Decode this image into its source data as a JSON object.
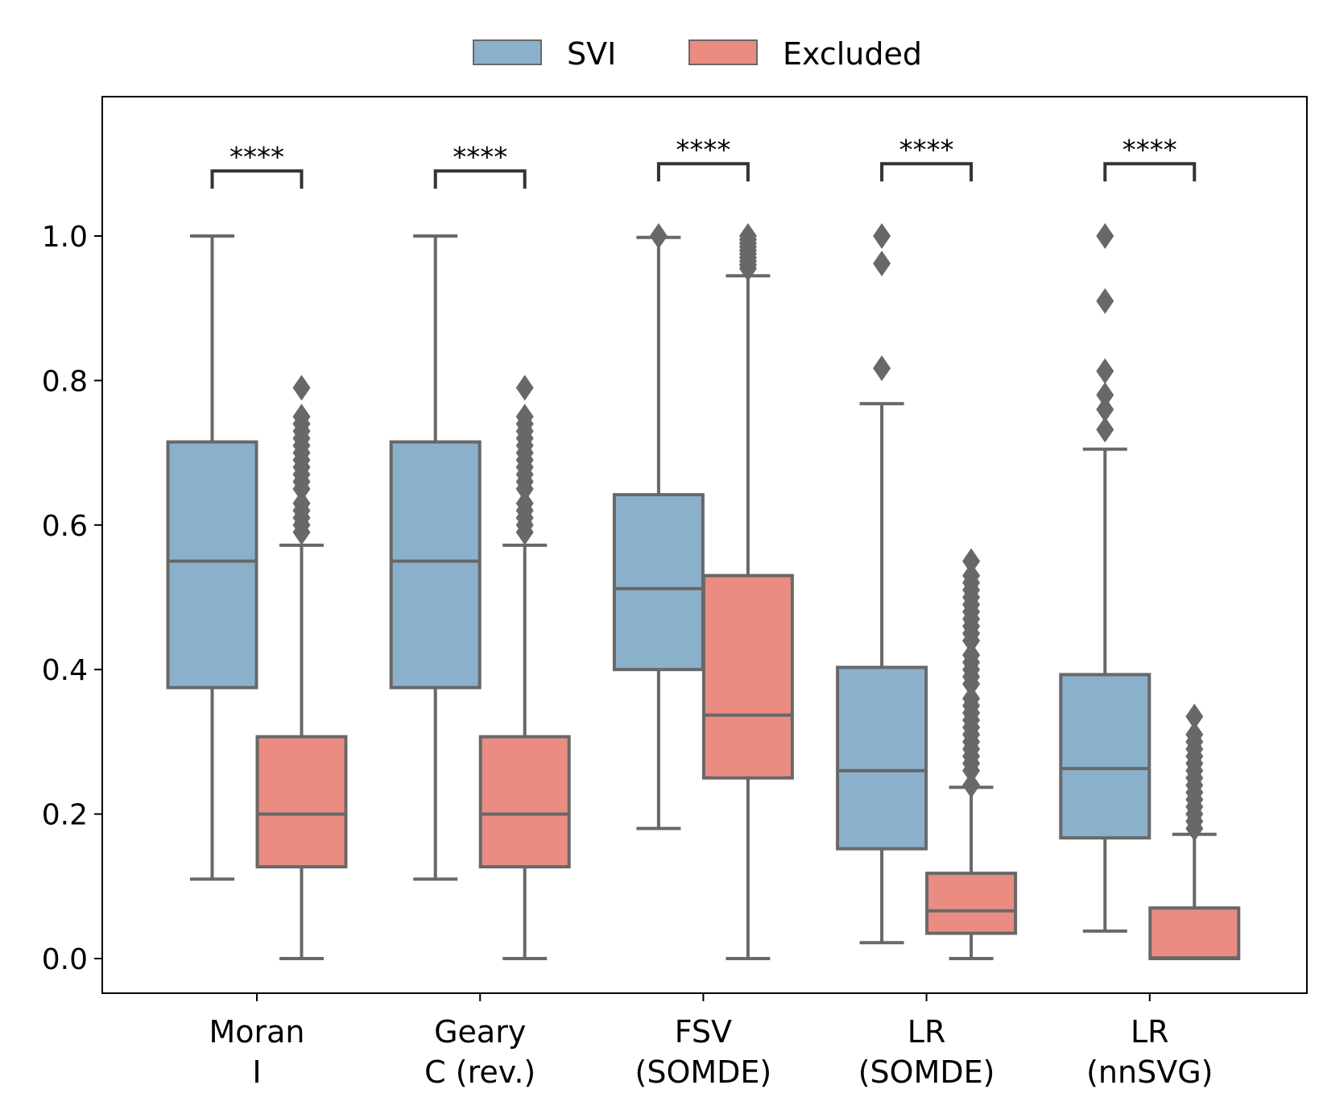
{
  "chart_data": {
    "type": "box",
    "legend": {
      "placement": "top-center",
      "entries": [
        {
          "name": "SVI",
          "color": "#8bb0cc"
        },
        {
          "name": "Excluded",
          "color": "#ea8c82"
        }
      ]
    },
    "box_edge_color": "#686868",
    "ylim": [
      -0.05,
      1.2
    ],
    "yticks": [
      0.0,
      0.2,
      0.4,
      0.6,
      0.8,
      1.0
    ],
    "ytick_labels": [
      "0.0",
      "0.2",
      "0.4",
      "0.6",
      "0.8",
      "1.0"
    ],
    "categories": [
      {
        "label_lines": [
          "Moran",
          "I"
        ],
        "significance": "****",
        "bracket_y": 1.09,
        "boxes": [
          {
            "series": "SVI",
            "whislo": 0.11,
            "q1": 0.375,
            "med": 0.55,
            "q3": 0.715,
            "whishi": 1.0,
            "fliers": []
          },
          {
            "series": "Excluded",
            "whislo": 0.0,
            "q1": 0.127,
            "med": 0.2,
            "q3": 0.307,
            "whishi": 0.572,
            "fliers": [
              0.59,
              0.6,
              0.61,
              0.62,
              0.63,
              0.65,
              0.66,
              0.67,
              0.68,
              0.69,
              0.7,
              0.71,
              0.72,
              0.73,
              0.74,
              0.75,
              0.79
            ]
          }
        ]
      },
      {
        "label_lines": [
          "Geary",
          "C (rev.)"
        ],
        "significance": "****",
        "bracket_y": 1.09,
        "boxes": [
          {
            "series": "SVI",
            "whislo": 0.11,
            "q1": 0.375,
            "med": 0.55,
            "q3": 0.715,
            "whishi": 1.0,
            "fliers": []
          },
          {
            "series": "Excluded",
            "whislo": 0.0,
            "q1": 0.127,
            "med": 0.2,
            "q3": 0.307,
            "whishi": 0.572,
            "fliers": [
              0.59,
              0.6,
              0.61,
              0.62,
              0.63,
              0.65,
              0.66,
              0.67,
              0.68,
              0.69,
              0.7,
              0.71,
              0.72,
              0.73,
              0.74,
              0.75,
              0.79
            ]
          }
        ]
      },
      {
        "label_lines": [
          "FSV",
          "(SOMDE)"
        ],
        "significance": "****",
        "bracket_y": 1.1,
        "boxes": [
          {
            "series": "SVI",
            "whislo": 0.18,
            "q1": 0.4,
            "med": 0.512,
            "q3": 0.642,
            "whishi": 0.998,
            "fliers": [
              1.0
            ]
          },
          {
            "series": "Excluded",
            "whislo": 0.0,
            "q1": 0.25,
            "med": 0.337,
            "q3": 0.53,
            "whishi": 0.945,
            "fliers": [
              0.955,
              0.96,
              0.965,
              0.97,
              0.975,
              0.98,
              0.985,
              0.99,
              0.995,
              1.0
            ]
          }
        ]
      },
      {
        "label_lines": [
          "LR",
          "(SOMDE)"
        ],
        "significance": "****",
        "bracket_y": 1.1,
        "boxes": [
          {
            "series": "SVI",
            "whislo": 0.022,
            "q1": 0.152,
            "med": 0.26,
            "q3": 0.403,
            "whishi": 0.768,
            "fliers": [
              0.817,
              0.962,
              1.0
            ]
          },
          {
            "series": "Excluded",
            "whislo": 0.0,
            "q1": 0.035,
            "med": 0.066,
            "q3": 0.118,
            "whishi": 0.237,
            "fliers": [
              0.24,
              0.26,
              0.27,
              0.28,
              0.29,
              0.3,
              0.31,
              0.32,
              0.33,
              0.34,
              0.35,
              0.36,
              0.38,
              0.39,
              0.4,
              0.41,
              0.42,
              0.44,
              0.45,
              0.46,
              0.47,
              0.48,
              0.49,
              0.5,
              0.51,
              0.52,
              0.53,
              0.55
            ]
          }
        ]
      },
      {
        "label_lines": [
          "LR",
          "(nnSVG)"
        ],
        "significance": "****",
        "bracket_y": 1.1,
        "boxes": [
          {
            "series": "SVI",
            "whislo": 0.038,
            "q1": 0.167,
            "med": 0.263,
            "q3": 0.393,
            "whishi": 0.705,
            "fliers": [
              0.732,
              0.76,
              0.78,
              0.813,
              0.91,
              1.0
            ]
          },
          {
            "series": "Excluded",
            "whislo": 0.0,
            "q1": 0.0,
            "med": 0.001,
            "q3": 0.07,
            "whishi": 0.172,
            "fliers": [
              0.18,
              0.19,
              0.2,
              0.21,
              0.22,
              0.23,
              0.24,
              0.25,
              0.26,
              0.27,
              0.28,
              0.29,
              0.3,
              0.31,
              0.335
            ]
          }
        ]
      }
    ]
  }
}
